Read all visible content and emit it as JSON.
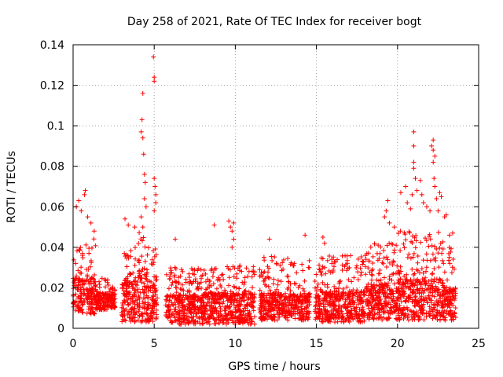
{
  "chart_data": {
    "type": "scatter",
    "title": "Day 258 of 2021, Rate Of TEC Index for receiver bogt",
    "xlabel": "GPS time / hours",
    "ylabel": "ROTI / TECUs",
    "xlim": [
      0,
      25
    ],
    "ylim": [
      0,
      0.14
    ],
    "x_ticks": [
      "0",
      "5",
      "10",
      "15",
      "20",
      "25"
    ],
    "y_ticks": [
      "0",
      "0.02",
      "0.04",
      "0.06",
      "0.08",
      "0.1",
      "0.12",
      "0.14"
    ],
    "grid": true,
    "marker": "+",
    "color": "#ff0000",
    "density_profile": [
      {
        "x0": 0.0,
        "x1": 1.4,
        "min": 0.007,
        "typ": 0.022,
        "max": 0.045
      },
      {
        "x0": 1.4,
        "x1": 2.2,
        "min": 0.009,
        "typ": 0.016,
        "max": 0.025
      },
      {
        "x0": 2.2,
        "x1": 2.6,
        "min": 0.01,
        "typ": 0.016,
        "max": 0.022
      },
      {
        "x0": 3.0,
        "x1": 4.0,
        "min": 0.003,
        "typ": 0.02,
        "max": 0.04
      },
      {
        "x0": 4.0,
        "x1": 4.6,
        "min": 0.003,
        "typ": 0.025,
        "max": 0.048
      },
      {
        "x0": 4.6,
        "x1": 5.2,
        "min": 0.003,
        "typ": 0.02,
        "max": 0.04
      },
      {
        "x0": 5.7,
        "x1": 8.0,
        "min": 0.002,
        "typ": 0.014,
        "max": 0.03
      },
      {
        "x0": 8.0,
        "x1": 11.2,
        "min": 0.002,
        "typ": 0.015,
        "max": 0.031
      },
      {
        "x0": 11.5,
        "x1": 14.6,
        "min": 0.004,
        "typ": 0.015,
        "max": 0.036
      },
      {
        "x0": 14.9,
        "x1": 18.0,
        "min": 0.003,
        "typ": 0.016,
        "max": 0.036
      },
      {
        "x0": 18.0,
        "x1": 20.0,
        "min": 0.004,
        "typ": 0.019,
        "max": 0.042
      },
      {
        "x0": 20.0,
        "x1": 22.8,
        "min": 0.004,
        "typ": 0.021,
        "max": 0.048
      },
      {
        "x0": 22.8,
        "x1": 23.6,
        "min": 0.004,
        "typ": 0.018,
        "max": 0.04
      }
    ],
    "notable_points": [
      {
        "x": 0.2,
        "y": 0.06
      },
      {
        "x": 0.35,
        "y": 0.063
      },
      {
        "x": 0.5,
        "y": 0.058
      },
      {
        "x": 0.7,
        "y": 0.066
      },
      {
        "x": 0.75,
        "y": 0.068
      },
      {
        "x": 0.9,
        "y": 0.055
      },
      {
        "x": 1.1,
        "y": 0.052
      },
      {
        "x": 1.3,
        "y": 0.048
      },
      {
        "x": 3.2,
        "y": 0.054
      },
      {
        "x": 3.4,
        "y": 0.051
      },
      {
        "x": 3.8,
        "y": 0.05
      },
      {
        "x": 4.2,
        "y": 0.097
      },
      {
        "x": 4.25,
        "y": 0.103
      },
      {
        "x": 4.3,
        "y": 0.116
      },
      {
        "x": 4.3,
        "y": 0.094
      },
      {
        "x": 4.35,
        "y": 0.086
      },
      {
        "x": 4.4,
        "y": 0.076
      },
      {
        "x": 4.45,
        "y": 0.072
      },
      {
        "x": 4.4,
        "y": 0.064
      },
      {
        "x": 4.5,
        "y": 0.06
      },
      {
        "x": 4.2,
        "y": 0.055
      },
      {
        "x": 4.3,
        "y": 0.05
      },
      {
        "x": 4.95,
        "y": 0.134
      },
      {
        "x": 5.0,
        "y": 0.124
      },
      {
        "x": 5.0,
        "y": 0.122
      },
      {
        "x": 5.0,
        "y": 0.074
      },
      {
        "x": 5.05,
        "y": 0.07
      },
      {
        "x": 5.1,
        "y": 0.066
      },
      {
        "x": 5.1,
        "y": 0.062
      },
      {
        "x": 5.0,
        "y": 0.058
      },
      {
        "x": 6.3,
        "y": 0.044
      },
      {
        "x": 8.7,
        "y": 0.051
      },
      {
        "x": 9.6,
        "y": 0.053
      },
      {
        "x": 9.7,
        "y": 0.05
      },
      {
        "x": 9.8,
        "y": 0.048
      },
      {
        "x": 9.9,
        "y": 0.052
      },
      {
        "x": 9.9,
        "y": 0.044
      },
      {
        "x": 9.8,
        "y": 0.04
      },
      {
        "x": 12.1,
        "y": 0.044
      },
      {
        "x": 14.3,
        "y": 0.046
      },
      {
        "x": 15.4,
        "y": 0.045
      },
      {
        "x": 15.5,
        "y": 0.042
      },
      {
        "x": 19.4,
        "y": 0.063
      },
      {
        "x": 19.3,
        "y": 0.058
      },
      {
        "x": 19.2,
        "y": 0.055
      },
      {
        "x": 19.5,
        "y": 0.052
      },
      {
        "x": 19.8,
        "y": 0.05
      },
      {
        "x": 20.2,
        "y": 0.067
      },
      {
        "x": 20.5,
        "y": 0.07
      },
      {
        "x": 20.6,
        "y": 0.062
      },
      {
        "x": 20.8,
        "y": 0.059
      },
      {
        "x": 20.9,
        "y": 0.066
      },
      {
        "x": 21.0,
        "y": 0.097
      },
      {
        "x": 21.0,
        "y": 0.09
      },
      {
        "x": 21.0,
        "y": 0.082
      },
      {
        "x": 21.0,
        "y": 0.079
      },
      {
        "x": 21.1,
        "y": 0.074
      },
      {
        "x": 21.2,
        "y": 0.068
      },
      {
        "x": 21.4,
        "y": 0.073
      },
      {
        "x": 21.5,
        "y": 0.066
      },
      {
        "x": 21.6,
        "y": 0.062
      },
      {
        "x": 21.8,
        "y": 0.06
      },
      {
        "x": 22.0,
        "y": 0.058
      },
      {
        "x": 22.1,
        "y": 0.09
      },
      {
        "x": 22.2,
        "y": 0.093
      },
      {
        "x": 22.2,
        "y": 0.088
      },
      {
        "x": 22.2,
        "y": 0.082
      },
      {
        "x": 22.3,
        "y": 0.085
      },
      {
        "x": 22.25,
        "y": 0.074
      },
      {
        "x": 22.3,
        "y": 0.07
      },
      {
        "x": 22.4,
        "y": 0.064
      },
      {
        "x": 22.5,
        "y": 0.058
      },
      {
        "x": 22.6,
        "y": 0.067
      },
      {
        "x": 22.7,
        "y": 0.065
      },
      {
        "x": 22.9,
        "y": 0.055
      },
      {
        "x": 23.0,
        "y": 0.056
      },
      {
        "x": 23.2,
        "y": 0.046
      },
      {
        "x": 23.4,
        "y": 0.047
      }
    ]
  }
}
